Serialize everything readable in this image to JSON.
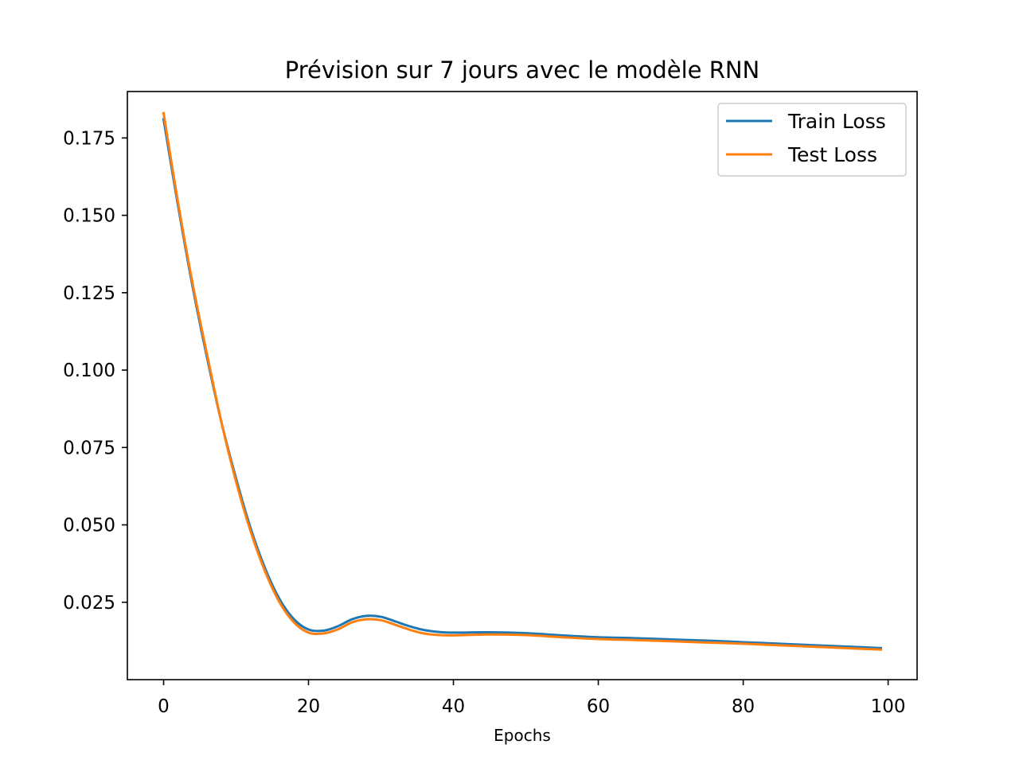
{
  "chart_data": {
    "type": "line",
    "title": "Prévision sur 7 jours avec le modèle RNN",
    "xlabel": "Epochs",
    "ylabel": "",
    "xlim": [
      -5,
      104
    ],
    "ylim": [
      0.0,
      0.19
    ],
    "xticks": [
      0,
      20,
      40,
      60,
      80,
      100
    ],
    "xtick_labels": [
      "0",
      "20",
      "40",
      "60",
      "80",
      "100"
    ],
    "yticks": [
      0.025,
      0.05,
      0.075,
      0.1,
      0.125,
      0.15,
      0.175
    ],
    "ytick_labels": [
      "0.025",
      "0.050",
      "0.075",
      "0.100",
      "0.125",
      "0.150",
      "0.175"
    ],
    "grid": false,
    "legend_position": "top-right",
    "series": [
      {
        "name": "Train Loss",
        "color": "#1f77b4",
        "x": [
          0,
          2,
          4,
          6,
          8,
          10,
          12,
          14,
          16,
          18,
          20,
          22,
          24,
          26,
          28,
          30,
          32,
          34,
          36,
          38,
          40,
          45,
          50,
          55,
          60,
          65,
          70,
          75,
          80,
          85,
          90,
          95,
          99
        ],
        "y": [
          0.181,
          0.153,
          0.127,
          0.104,
          0.083,
          0.065,
          0.049,
          0.036,
          0.026,
          0.0195,
          0.0162,
          0.0158,
          0.0172,
          0.0195,
          0.0206,
          0.0203,
          0.0188,
          0.0172,
          0.016,
          0.0154,
          0.0152,
          0.0153,
          0.015,
          0.0143,
          0.0137,
          0.0134,
          0.013,
          0.0126,
          0.0121,
          0.0116,
          0.0111,
          0.0106,
          0.0102
        ]
      },
      {
        "name": "Test Loss",
        "color": "#ff7f0e",
        "x": [
          0,
          2,
          4,
          6,
          8,
          10,
          12,
          14,
          16,
          18,
          20,
          22,
          24,
          26,
          28,
          30,
          32,
          34,
          36,
          38,
          40,
          45,
          50,
          55,
          60,
          65,
          70,
          75,
          80,
          85,
          90,
          95,
          99
        ],
        "y": [
          0.183,
          0.154,
          0.128,
          0.105,
          0.083,
          0.064,
          0.048,
          0.035,
          0.025,
          0.0185,
          0.0152,
          0.0149,
          0.0162,
          0.0185,
          0.0195,
          0.0192,
          0.0177,
          0.0161,
          0.0149,
          0.0144,
          0.0143,
          0.0146,
          0.0144,
          0.0137,
          0.0131,
          0.0128,
          0.0124,
          0.012,
          0.0116,
          0.0111,
          0.0106,
          0.0101,
          0.0097
        ]
      }
    ]
  }
}
